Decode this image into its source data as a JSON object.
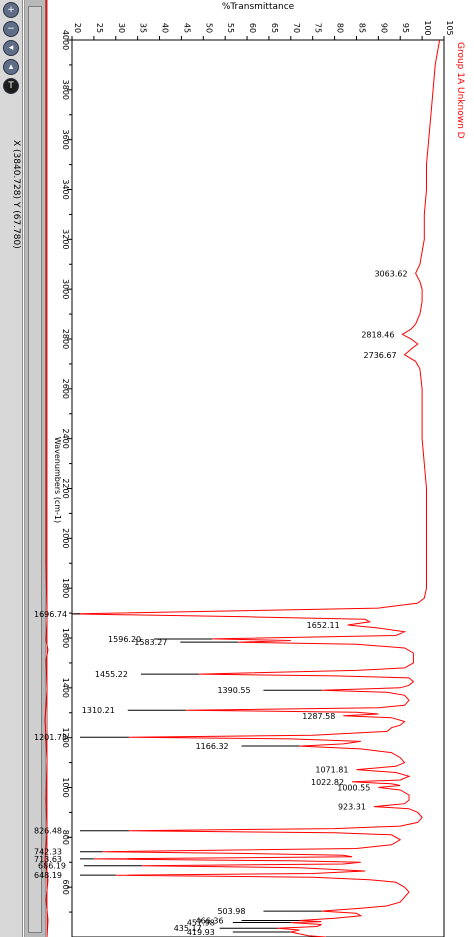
{
  "window": {
    "coord_readout": "X (3840.728) Y (67.780)",
    "toolbar_icons": [
      "zoom-in-icon",
      "zoom-out-icon",
      "cursor-icon",
      "peak-icon",
      "text-icon"
    ]
  },
  "chart_data": {
    "type": "line",
    "orientation": "rotated 90deg: wavenumber runs top to bottom, %T runs left to right",
    "title": "",
    "xlabel": "Wavenumbers (cm-1)",
    "ylabel": "%Transmittance",
    "xlim": [
      4000,
      400
    ],
    "ylim": [
      20,
      105
    ],
    "x_ticks": [
      4000,
      3800,
      3600,
      3400,
      3200,
      3000,
      2800,
      2600,
      2400,
      2200,
      2000,
      1800,
      1600,
      1400,
      1200,
      1000,
      800,
      600
    ],
    "y_ticks": [
      20,
      25,
      30,
      35,
      40,
      45,
      50,
      55,
      60,
      65,
      70,
      75,
      80,
      85,
      90,
      95,
      100,
      105
    ],
    "grid": false,
    "legend": "Group 1A Unknown D",
    "series_color": "#ff0000",
    "series": [
      {
        "name": "Group 1A Unknown D",
        "points": [
          [
            4000,
            104
          ],
          [
            3950,
            103.5
          ],
          [
            3900,
            103
          ],
          [
            3800,
            102.5
          ],
          [
            3700,
            102
          ],
          [
            3600,
            101.5
          ],
          [
            3500,
            101
          ],
          [
            3400,
            101
          ],
          [
            3300,
            100.5
          ],
          [
            3200,
            100.5
          ],
          [
            3150,
            100
          ],
          [
            3100,
            99.5
          ],
          [
            3063.62,
            98.5
          ],
          [
            3030,
            99.5
          ],
          [
            3000,
            100
          ],
          [
            2950,
            100
          ],
          [
            2900,
            99.5
          ],
          [
            2860,
            98.5
          ],
          [
            2840,
            97.5
          ],
          [
            2818.46,
            95.5
          ],
          [
            2800,
            97.5
          ],
          [
            2780,
            99
          ],
          [
            2760,
            97.5
          ],
          [
            2736.67,
            96
          ],
          [
            2710,
            98.5
          ],
          [
            2680,
            99.5
          ],
          [
            2600,
            100
          ],
          [
            2500,
            100
          ],
          [
            2400,
            100
          ],
          [
            2300,
            100.5
          ],
          [
            2200,
            101
          ],
          [
            2100,
            101
          ],
          [
            2000,
            101
          ],
          [
            1950,
            101
          ],
          [
            1900,
            101
          ],
          [
            1850,
            101
          ],
          [
            1800,
            101
          ],
          [
            1760,
            100.5
          ],
          [
            1740,
            99
          ],
          [
            1720,
            90
          ],
          [
            1710,
            60
          ],
          [
            1696.74,
            20
          ],
          [
            1685,
            60
          ],
          [
            1675,
            87
          ],
          [
            1665,
            88
          ],
          [
            1652.11,
            83
          ],
          [
            1640,
            90
          ],
          [
            1625,
            96
          ],
          [
            1610,
            94
          ],
          [
            1596.2,
            52
          ],
          [
            1590,
            70
          ],
          [
            1583.27,
            58
          ],
          [
            1575,
            85
          ],
          [
            1560,
            96
          ],
          [
            1540,
            98
          ],
          [
            1520,
            98
          ],
          [
            1500,
            98
          ],
          [
            1490,
            97
          ],
          [
            1480,
            96
          ],
          [
            1470,
            85
          ],
          [
            1455.22,
            49
          ],
          [
            1448,
            80
          ],
          [
            1440,
            97
          ],
          [
            1425,
            98
          ],
          [
            1410,
            97
          ],
          [
            1400,
            95
          ],
          [
            1390.55,
            77
          ],
          [
            1382,
            92
          ],
          [
            1370,
            96
          ],
          [
            1350,
            97
          ],
          [
            1330,
            96
          ],
          [
            1320,
            90
          ],
          [
            1310.21,
            46
          ],
          [
            1302,
            85
          ],
          [
            1295,
            90
          ],
          [
            1287.58,
            82
          ],
          [
            1280,
            93
          ],
          [
            1265,
            96
          ],
          [
            1250,
            95
          ],
          [
            1240,
            93
          ],
          [
            1225,
            92
          ],
          [
            1210,
            75
          ],
          [
            1201.78,
            33
          ],
          [
            1195,
            70
          ],
          [
            1185,
            86
          ],
          [
            1175,
            82
          ],
          [
            1166.32,
            72
          ],
          [
            1155,
            86
          ],
          [
            1140,
            93
          ],
          [
            1120,
            95
          ],
          [
            1100,
            96
          ],
          [
            1085,
            94
          ],
          [
            1071.81,
            85
          ],
          [
            1060,
            94
          ],
          [
            1045,
            97
          ],
          [
            1030,
            95
          ],
          [
            1022.82,
            84
          ],
          [
            1015,
            93
          ],
          [
            1008,
            95
          ],
          [
            1000.55,
            90
          ],
          [
            990,
            95
          ],
          [
            970,
            97
          ],
          [
            950,
            97
          ],
          [
            935,
            96
          ],
          [
            923.31,
            89
          ],
          [
            915,
            97
          ],
          [
            900,
            99
          ],
          [
            880,
            100
          ],
          [
            860,
            99
          ],
          [
            845,
            95
          ],
          [
            835,
            80
          ],
          [
            826.48,
            33
          ],
          [
            818,
            80
          ],
          [
            810,
            93
          ],
          [
            790,
            95
          ],
          [
            770,
            93
          ],
          [
            755,
            85
          ],
          [
            742.33,
            27
          ],
          [
            735,
            60
          ],
          [
            728,
            82
          ],
          [
            722,
            84
          ],
          [
            713.63,
            25
          ],
          [
            706,
            70
          ],
          [
            700,
            86
          ],
          [
            693,
            82
          ],
          [
            686.19,
            36
          ],
          [
            678,
            72
          ],
          [
            665,
            87
          ],
          [
            655,
            75
          ],
          [
            648.19,
            30
          ],
          [
            640,
            75
          ],
          [
            630,
            88
          ],
          [
            620,
            94
          ],
          [
            600,
            96
          ],
          [
            580,
            97
          ],
          [
            560,
            96
          ],
          [
            540,
            95
          ],
          [
            525,
            92
          ],
          [
            515,
            86
          ],
          [
            503.98,
            77
          ],
          [
            495,
            85
          ],
          [
            485,
            86
          ],
          [
            475,
            80
          ],
          [
            466.36,
            72
          ],
          [
            462,
            77
          ],
          [
            457.98,
            70
          ],
          [
            450,
            77
          ],
          [
            442,
            76
          ],
          [
            435.17,
            67
          ],
          [
            428,
            72
          ],
          [
            419.93,
            70
          ],
          [
            405,
            74
          ],
          [
            400,
            78
          ]
        ]
      }
    ],
    "annotations": [
      {
        "x": 3063.62,
        "y": 98.5,
        "label": "3063.62"
      },
      {
        "x": 2818.46,
        "y": 95.5,
        "label": "2818.46"
      },
      {
        "x": 2736.67,
        "y": 96,
        "label": "2736.67"
      },
      {
        "x": 1696.74,
        "y": 20,
        "label": "1696.74"
      },
      {
        "x": 1652.11,
        "y": 83,
        "label": "1652.11"
      },
      {
        "x": 1596.2,
        "y": 52,
        "label": "1596.20"
      },
      {
        "x": 1583.27,
        "y": 58,
        "label": "1583.27"
      },
      {
        "x": 1455.22,
        "y": 49,
        "label": "1455.22"
      },
      {
        "x": 1390.55,
        "y": 77,
        "label": "1390.55"
      },
      {
        "x": 1310.21,
        "y": 46,
        "label": "1310.21"
      },
      {
        "x": 1287.58,
        "y": 82,
        "label": "1287.58"
      },
      {
        "x": 1201.78,
        "y": 33,
        "label": "1201.78"
      },
      {
        "x": 1166.32,
        "y": 72,
        "label": "1166.32"
      },
      {
        "x": 1071.81,
        "y": 85,
        "label": "1071.81"
      },
      {
        "x": 1022.82,
        "y": 84,
        "label": "1022.82"
      },
      {
        "x": 1000.55,
        "y": 90,
        "label": "1000.55"
      },
      {
        "x": 923.31,
        "y": 89,
        "label": "923.31"
      },
      {
        "x": 826.48,
        "y": 33,
        "label": "826.48"
      },
      {
        "x": 742.33,
        "y": 27,
        "label": "742.33"
      },
      {
        "x": 713.63,
        "y": 25,
        "label": "713.63"
      },
      {
        "x": 686.19,
        "y": 36,
        "label": "686.19"
      },
      {
        "x": 648.19,
        "y": 30,
        "label": "648.19"
      },
      {
        "x": 503.98,
        "y": 77,
        "label": "503.98"
      },
      {
        "x": 466.36,
        "y": 72,
        "label": "466.36"
      },
      {
        "x": 457.98,
        "y": 70,
        "label": "457.98"
      },
      {
        "x": 435.17,
        "y": 67,
        "label": "435.17"
      },
      {
        "x": 419.93,
        "y": 70,
        "label": "419.93"
      }
    ]
  }
}
